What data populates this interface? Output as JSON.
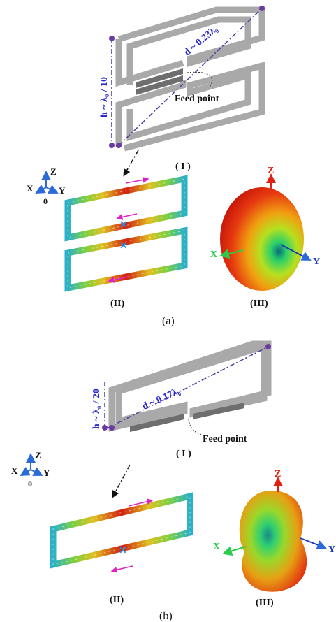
{
  "panel_a": {
    "caption": "(a)",
    "antenna": {
      "height_label": "h ~ λ₀ / 10",
      "diagonal_label": "d ~ 0.23λ₀",
      "feed_label": "Feed point"
    },
    "currents": {
      "label_I": "( I )",
      "label_II": "(II)",
      "axes": {
        "z": "Z",
        "x": "X",
        "y": "Y",
        "origin": "0"
      }
    },
    "pattern": {
      "label_III": "(III)",
      "axes": {
        "z": "Z",
        "x": "X",
        "y": "Y"
      }
    }
  },
  "panel_b": {
    "caption": "(b)",
    "antenna": {
      "height_label": "h ~ λ₀ / 20",
      "diagonal_label": "d ~ 0.17λ₀",
      "feed_label": "Feed point",
      "label_I": "( I )"
    },
    "currents": {
      "label_II": "(II)",
      "axes": {
        "z": "Z",
        "x": "X",
        "y": "Y",
        "origin": "0"
      }
    },
    "pattern": {
      "label_III": "(III)",
      "axes": {
        "z": "Z",
        "x": "X",
        "y": "Y"
      }
    }
  },
  "colors": {
    "frame": "#a9a9a9",
    "feed_bar": "#6e6e6e",
    "dash_line": "#4a3aa0",
    "corner_dot": "#6a3aa0",
    "label_blue": "#2a2ad0",
    "current_magenta": "#e020c8",
    "axis_blue": "#2c6ad8",
    "pattern_red": "#e02010",
    "pattern_green": "#2acc4a"
  }
}
